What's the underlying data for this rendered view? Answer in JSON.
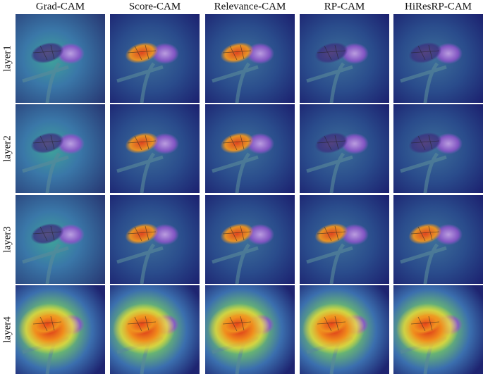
{
  "columns": [
    "Grad-CAM",
    "Score-CAM",
    "Relevance-CAM",
    "RP-CAM",
    "HiResRP-CAM"
  ],
  "rows": [
    "layer1",
    "layer2",
    "layer3",
    "layer4"
  ]
}
